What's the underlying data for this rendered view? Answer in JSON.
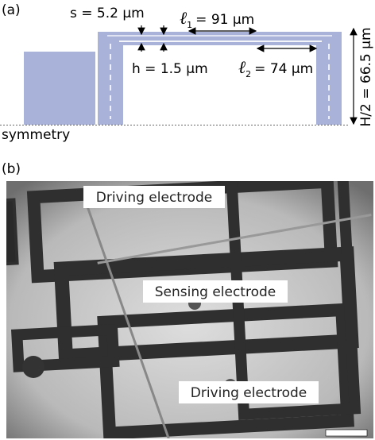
{
  "panel_a": {
    "label": "(a)",
    "s": "s = 5.2 µm",
    "l1": {
      "symbol": "ℓ",
      "sub": "1",
      "text": "= 91 µm"
    },
    "h": "h = 1.5 µm",
    "l2": {
      "symbol": "ℓ",
      "sub": "2",
      "text": "= 74 µm"
    },
    "half_height": "H/2 = 66.5 µm",
    "symmetry": "symmetry"
  },
  "panel_b": {
    "label": "(b)",
    "labels": [
      "Driving electrode",
      "Sensing electrode",
      "Driving electrode"
    ]
  }
}
